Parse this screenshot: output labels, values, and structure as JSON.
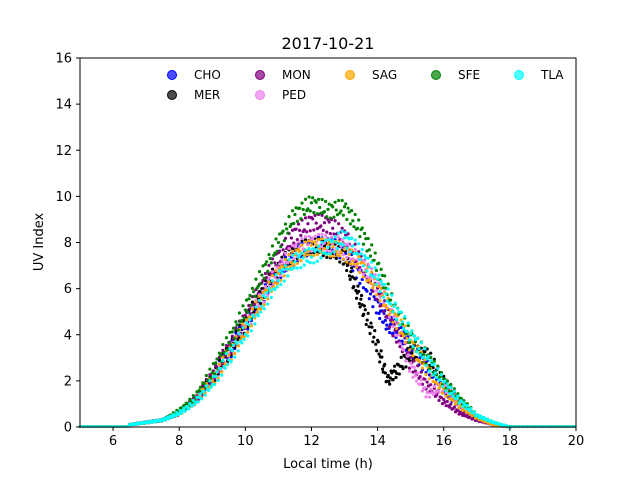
{
  "chart_data": {
    "type": "scatter",
    "title": "2017-10-21",
    "xlabel": "Local time (h)",
    "ylabel": "UV Index",
    "xlim": [
      5,
      20
    ],
    "ylim": [
      0,
      16
    ],
    "xticks": [
      6,
      8,
      10,
      12,
      14,
      16,
      18,
      20
    ],
    "yticks": [
      0,
      2,
      4,
      6,
      8,
      10,
      12,
      14,
      16
    ],
    "grid": false,
    "legend": {
      "placement": "top",
      "columns": 5
    },
    "series": [
      {
        "name": "CHO",
        "color": "#0000ff",
        "x": [
          6.5,
          7.0,
          7.5,
          8.0,
          8.5,
          9.0,
          9.5,
          10.0,
          10.5,
          11.0,
          11.5,
          12.0,
          12.5,
          13.0,
          13.5,
          14.0,
          14.3,
          14.6,
          15.0,
          15.5,
          16.0,
          16.5,
          17.0,
          17.5,
          18.0
        ],
        "y": [
          0.1,
          0.2,
          0.3,
          0.6,
          1.2,
          2.1,
          3.2,
          4.4,
          5.6,
          6.7,
          7.4,
          7.9,
          7.9,
          7.6,
          6.5,
          5.2,
          4.5,
          4.2,
          3.4,
          2.6,
          1.6,
          0.9,
          0.4,
          0.1,
          0.0
        ]
      },
      {
        "name": "MER",
        "color": "#000000",
        "x": [
          6.5,
          7.0,
          7.5,
          8.0,
          8.5,
          9.0,
          9.5,
          10.0,
          10.5,
          11.0,
          11.5,
          12.0,
          12.5,
          13.0,
          13.3,
          13.6,
          14.0,
          14.3,
          14.6,
          15.0,
          15.5,
          16.0,
          16.5,
          17.0,
          17.5,
          18.0
        ],
        "y": [
          0.1,
          0.2,
          0.3,
          0.6,
          1.2,
          2.1,
          3.3,
          4.5,
          5.8,
          6.9,
          7.6,
          7.9,
          7.7,
          7.4,
          6.2,
          5.0,
          3.5,
          2.0,
          2.5,
          3.2,
          3.1,
          2.0,
          1.0,
          0.4,
          0.1,
          0.0
        ]
      },
      {
        "name": "MON",
        "color": "#800080",
        "x": [
          6.5,
          7.0,
          7.5,
          8.0,
          8.5,
          9.0,
          9.5,
          10.0,
          10.5,
          11.0,
          11.5,
          12.0,
          12.5,
          13.0,
          13.5,
          14.0,
          14.5,
          15.0,
          15.5,
          16.0,
          16.5,
          17.0,
          17.5,
          18.0
        ],
        "y": [
          0.1,
          0.2,
          0.3,
          0.6,
          1.2,
          2.2,
          3.4,
          4.7,
          6.1,
          7.4,
          8.4,
          8.9,
          8.8,
          8.3,
          7.2,
          5.8,
          4.2,
          2.8,
          1.8,
          1.1,
          0.6,
          0.3,
          0.1,
          0.0
        ]
      },
      {
        "name": "PED",
        "color": "#ee82ee",
        "x": [
          6.5,
          7.0,
          7.5,
          8.0,
          8.5,
          9.0,
          9.5,
          10.0,
          10.5,
          11.0,
          11.5,
          12.0,
          12.5,
          13.0,
          13.5,
          14.0,
          14.5,
          15.0,
          15.5,
          16.0,
          16.5,
          17.0,
          17.5,
          18.0
        ],
        "y": [
          0.1,
          0.2,
          0.3,
          0.6,
          1.1,
          2.0,
          3.1,
          4.3,
          5.6,
          6.8,
          7.7,
          8.0,
          8.0,
          7.8,
          7.1,
          6.2,
          4.6,
          2.6,
          1.4,
          1.8,
          1.0,
          0.4,
          0.1,
          0.0
        ]
      },
      {
        "name": "SAG",
        "color": "#ffa500",
        "x": [
          6.5,
          7.0,
          7.5,
          8.0,
          8.5,
          9.0,
          9.5,
          10.0,
          10.5,
          11.0,
          11.5,
          12.0,
          12.5,
          13.0,
          13.5,
          14.0,
          14.5,
          15.0,
          15.5,
          16.0,
          16.5,
          17.0,
          17.5,
          18.0
        ],
        "y": [
          0.1,
          0.2,
          0.3,
          0.6,
          1.1,
          2.0,
          3.1,
          4.3,
          5.5,
          6.6,
          7.4,
          7.8,
          7.8,
          7.6,
          7.0,
          6.0,
          4.8,
          3.6,
          2.5,
          1.6,
          0.9,
          0.4,
          0.1,
          0.0
        ]
      },
      {
        "name": "SFE",
        "color": "#008000",
        "x": [
          6.5,
          7.0,
          7.5,
          8.0,
          8.5,
          9.0,
          9.5,
          10.0,
          10.5,
          11.0,
          11.5,
          12.0,
          12.5,
          13.0,
          13.5,
          14.0,
          14.5,
          15.0,
          15.5,
          16.0,
          16.5,
          17.0,
          17.5,
          18.0
        ],
        "y": [
          0.1,
          0.2,
          0.3,
          0.7,
          1.3,
          2.4,
          3.7,
          5.1,
          6.6,
          8.0,
          9.2,
          9.7,
          9.4,
          9.5,
          8.5,
          7.0,
          5.2,
          3.9,
          3.0,
          2.0,
          1.2,
          0.5,
          0.2,
          0.0
        ]
      },
      {
        "name": "TLA",
        "color": "#00ffff",
        "x": [
          6.5,
          7.0,
          7.5,
          8.0,
          8.5,
          9.0,
          9.5,
          10.0,
          10.5,
          11.0,
          11.5,
          12.0,
          12.5,
          13.0,
          13.5,
          14.0,
          14.5,
          15.0,
          15.5,
          16.0,
          16.5,
          17.0,
          17.5,
          18.0
        ],
        "y": [
          0.1,
          0.2,
          0.3,
          0.6,
          1.1,
          1.9,
          3.0,
          4.1,
          5.3,
          6.4,
          7.2,
          7.4,
          7.8,
          8.2,
          7.5,
          6.4,
          5.2,
          4.0,
          2.9,
          1.9,
          1.1,
          0.5,
          0.2,
          0.0
        ]
      }
    ]
  }
}
